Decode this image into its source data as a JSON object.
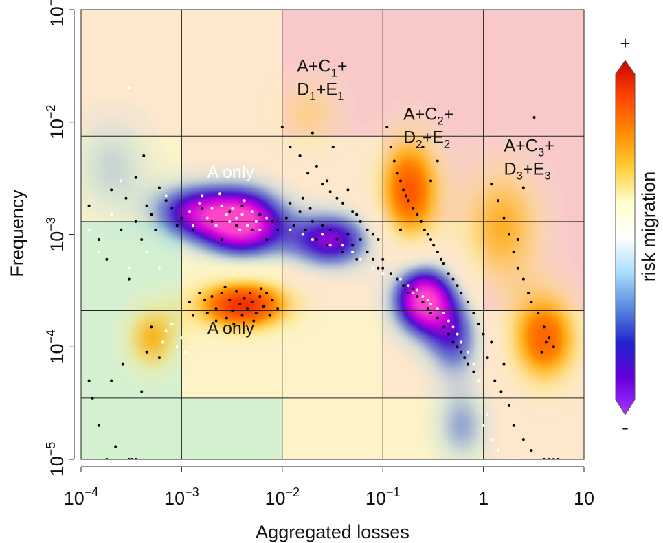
{
  "chart_data": {
    "type": "scatter",
    "background": "heatmap",
    "xlabel": "Aggregated losses",
    "ylabel": "Frequency",
    "x_scale": "log",
    "y_scale": "log",
    "xlim": [
      0.0001,
      10
    ],
    "ylim": [
      1e-05,
      0.1
    ],
    "x_ticks": [
      {
        "value": 0.0001,
        "base": "10",
        "exp": "−4"
      },
      {
        "value": 0.001,
        "base": "10",
        "exp": "−3"
      },
      {
        "value": 0.01,
        "base": "10",
        "exp": "−2"
      },
      {
        "value": 0.1,
        "base": "10",
        "exp": "−1"
      },
      {
        "value": 1,
        "base": "1",
        "exp": ""
      },
      {
        "value": 10,
        "base": "10",
        "exp": ""
      }
    ],
    "y_ticks": [
      {
        "value": 1e-05,
        "base": "10",
        "exp": "−5"
      },
      {
        "value": 0.0001,
        "base": "10",
        "exp": "−4"
      },
      {
        "value": 0.001,
        "base": "10",
        "exp": "−3"
      },
      {
        "value": 0.01,
        "base": "10",
        "exp": "−2"
      },
      {
        "value": 0.1,
        "base": "10",
        "exp": "−1"
      }
    ],
    "grid": true,
    "grid_x_bounds": [
      0.001,
      0.01,
      0.1,
      1
    ],
    "grid_y_bounds": [
      3.5e-05,
      0.00021,
      0.0013,
      0.0075
    ],
    "zones": [
      {
        "col": 0,
        "row": 4,
        "color": "#fde7cd"
      },
      {
        "col": 1,
        "row": 4,
        "color": "#fde7cd"
      },
      {
        "col": 2,
        "row": 4,
        "color": "#f9c9c9"
      },
      {
        "col": 3,
        "row": 4,
        "color": "#f9c9c9"
      },
      {
        "col": 4,
        "row": 4,
        "color": "#f9c9c9"
      },
      {
        "col": 0,
        "row": 3,
        "color": "#fdf3c8"
      },
      {
        "col": 1,
        "row": 3,
        "color": "#fde7cd"
      },
      {
        "col": 2,
        "row": 3,
        "color": "#fde7cd"
      },
      {
        "col": 3,
        "row": 3,
        "color": "#f9c9c9"
      },
      {
        "col": 4,
        "row": 3,
        "color": "#f9c9c9"
      },
      {
        "col": 0,
        "row": 2,
        "color": "#d5f0d0"
      },
      {
        "col": 1,
        "row": 2,
        "color": "#fdf3c8"
      },
      {
        "col": 2,
        "row": 2,
        "color": "#fde7cd"
      },
      {
        "col": 3,
        "row": 2,
        "color": "#fde7cd"
      },
      {
        "col": 4,
        "row": 2,
        "color": "#f9c9c9"
      },
      {
        "col": 0,
        "row": 1,
        "color": "#d5f0d0"
      },
      {
        "col": 1,
        "row": 1,
        "color": "#fdf3c8"
      },
      {
        "col": 2,
        "row": 1,
        "color": "#fdf3c8"
      },
      {
        "col": 3,
        "row": 1,
        "color": "#fde7cd"
      },
      {
        "col": 4,
        "row": 1,
        "color": "#fde7cd"
      },
      {
        "col": 0,
        "row": 0,
        "color": "#d5f0d0"
      },
      {
        "col": 1,
        "row": 0,
        "color": "#d5f0d0"
      },
      {
        "col": 2,
        "row": 0,
        "color": "#fdf3c8"
      },
      {
        "col": 3,
        "row": 0,
        "color": "#fdf3c8"
      },
      {
        "col": 4,
        "row": 0,
        "color": "#fde7cd"
      }
    ],
    "blobs": [
      {
        "x": 0.004,
        "y": 0.0013,
        "sx": 0.3,
        "sy": 0.22,
        "w": -1.0
      },
      {
        "x": 0.0012,
        "y": 0.0016,
        "sx": 0.28,
        "sy": 0.18,
        "w": -0.6
      },
      {
        "x": 0.25,
        "y": 0.00027,
        "sx": 0.22,
        "sy": 0.22,
        "w": -1.0
      },
      {
        "x": 0.03,
        "y": 0.0009,
        "sx": 0.3,
        "sy": 0.18,
        "w": -0.7
      },
      {
        "x": 0.5,
        "y": 0.00012,
        "sx": 0.2,
        "sy": 0.25,
        "w": -0.5
      },
      {
        "x": 0.004,
        "y": 0.00024,
        "sx": 0.35,
        "sy": 0.17,
        "w": 0.95
      },
      {
        "x": 0.0005,
        "y": 0.00012,
        "sx": 0.2,
        "sy": 0.22,
        "w": 0.5
      },
      {
        "x": 0.18,
        "y": 0.0025,
        "sx": 0.22,
        "sy": 0.35,
        "w": 0.8
      },
      {
        "x": 4.0,
        "y": 0.00012,
        "sx": 0.25,
        "sy": 0.3,
        "w": 0.75
      },
      {
        "x": 1.5,
        "y": 0.0012,
        "sx": 0.3,
        "sy": 0.4,
        "w": 0.5
      },
      {
        "x": 0.018,
        "y": 0.012,
        "sx": 0.25,
        "sy": 0.25,
        "w": 0.3
      },
      {
        "x": 0.0002,
        "y": 0.004,
        "sx": 0.3,
        "sy": 0.35,
        "w": -0.25
      },
      {
        "x": 0.6,
        "y": 2e-05,
        "sx": 0.2,
        "sy": 0.25,
        "w": -0.35
      }
    ],
    "points_black": [
      [
        0.00012,
        0.0018
      ],
      [
        0.00015,
        0.0009
      ],
      [
        0.0002,
        0.0025
      ],
      [
        0.00018,
        0.0006
      ],
      [
        0.00025,
        0.0011
      ],
      [
        0.0003,
        0.0004
      ],
      [
        0.00028,
        0.0021
      ],
      [
        0.00035,
        0.0013
      ],
      [
        0.0004,
        0.0009
      ],
      [
        0.00045,
        0.0018
      ],
      [
        0.0005,
        0.0015
      ],
      [
        0.00055,
        0.0011
      ],
      [
        0.0006,
        0.0026
      ],
      [
        0.0007,
        0.002
      ],
      [
        0.0008,
        0.0017
      ],
      [
        0.0009,
        0.0012
      ],
      [
        0.00042,
        0.005
      ],
      [
        0.00035,
        0.0032
      ],
      [
        0.00013,
        3.5e-05
      ],
      [
        0.00015,
        2e-05
      ],
      [
        0.00018,
        1e-05
      ],
      [
        0.00022,
        1.3e-05
      ],
      [
        0.0003,
        1e-05
      ],
      [
        0.00032,
        1e-05
      ],
      [
        0.00035,
        1e-05
      ],
      [
        0.0002,
        5e-05
      ],
      [
        0.00026,
        7e-05
      ],
      [
        0.0004,
        4e-05
      ],
      [
        0.00045,
        9e-05
      ],
      [
        0.0005,
        0.00015
      ],
      [
        0.0006,
        8e-05
      ],
      [
        0.00012,
        5e-05
      ],
      [
        0.0012,
        0.00025
      ],
      [
        0.0015,
        0.0003
      ],
      [
        0.0018,
        0.0002
      ],
      [
        0.002,
        0.00028
      ],
      [
        0.0022,
        0.00022
      ],
      [
        0.0025,
        0.0003
      ],
      [
        0.0028,
        0.00018
      ],
      [
        0.003,
        0.00026
      ],
      [
        0.0032,
        0.00021
      ],
      [
        0.0035,
        0.00031
      ],
      [
        0.0038,
        0.00024
      ],
      [
        0.004,
        0.00019
      ],
      [
        0.0042,
        0.00027
      ],
      [
        0.0045,
        0.00022
      ],
      [
        0.0048,
        0.0003
      ],
      [
        0.005,
        0.00025
      ],
      [
        0.0055,
        0.0002
      ],
      [
        0.006,
        0.00028
      ],
      [
        0.0065,
        0.00023
      ],
      [
        0.007,
        0.0003
      ],
      [
        0.0075,
        0.00019
      ],
      [
        0.008,
        0.00026
      ],
      [
        0.009,
        0.00022
      ],
      [
        0.0022,
        0.00017
      ],
      [
        0.0033,
        0.00016
      ],
      [
        0.0052,
        0.00017
      ],
      [
        0.0062,
        0.00033
      ],
      [
        0.0027,
        0.00034
      ],
      [
        0.0017,
        0.00026
      ],
      [
        0.0013,
        0.00019
      ],
      [
        0.001,
        0.0014
      ],
      [
        0.0013,
        0.0011
      ],
      [
        0.0016,
        0.0017
      ],
      [
        0.002,
        0.0013
      ],
      [
        0.0025,
        0.0009
      ],
      [
        0.003,
        0.0016
      ],
      [
        0.0035,
        0.0012
      ],
      [
        0.004,
        0.0018
      ],
      [
        0.005,
        0.0011
      ],
      [
        0.006,
        0.0015
      ],
      [
        0.007,
        0.0009
      ],
      [
        0.008,
        0.0013
      ],
      [
        0.009,
        0.0011
      ],
      [
        0.011,
        0.0014
      ],
      [
        0.013,
        0.0012
      ],
      [
        0.015,
        0.0016
      ],
      [
        0.017,
        0.0011
      ],
      [
        0.02,
        0.0013
      ],
      [
        0.022,
        0.0009
      ],
      [
        0.025,
        0.0012
      ],
      [
        0.028,
        0.0008
      ],
      [
        0.03,
        0.0011
      ],
      [
        0.035,
        0.0009
      ],
      [
        0.04,
        0.0007
      ],
      [
        0.045,
        0.001
      ],
      [
        0.05,
        0.0008
      ],
      [
        0.055,
        0.0006
      ],
      [
        0.06,
        0.0009
      ],
      [
        0.07,
        0.0007
      ],
      [
        0.08,
        0.0006
      ],
      [
        0.09,
        0.0005
      ],
      [
        0.1,
        0.0006
      ],
      [
        0.012,
        0.0019
      ],
      [
        0.016,
        0.0021
      ],
      [
        0.019,
        0.0017
      ],
      [
        0.01,
        0.009
      ],
      [
        0.012,
        0.006
      ],
      [
        0.015,
        0.005
      ],
      [
        0.018,
        0.0035
      ],
      [
        0.02,
        0.008
      ],
      [
        0.022,
        0.004
      ],
      [
        0.025,
        0.0028
      ],
      [
        0.028,
        0.003
      ],
      [
        0.03,
        0.0024
      ],
      [
        0.032,
        0.006
      ],
      [
        0.035,
        0.0021
      ],
      [
        0.04,
        0.0019
      ],
      [
        0.045,
        0.0025
      ],
      [
        0.05,
        0.0016
      ],
      [
        0.055,
        0.0015
      ],
      [
        0.06,
        0.0013
      ],
      [
        0.07,
        0.0011
      ],
      [
        0.08,
        0.001
      ],
      [
        0.09,
        0.0009
      ],
      [
        0.1,
        0.0005
      ],
      [
        0.12,
        0.00045
      ],
      [
        0.14,
        0.0004
      ],
      [
        0.16,
        0.00035
      ],
      [
        0.18,
        0.0003
      ],
      [
        0.2,
        0.00033
      ],
      [
        0.22,
        0.00028
      ],
      [
        0.25,
        0.00025
      ],
      [
        0.28,
        0.00022
      ],
      [
        0.3,
        0.0002
      ],
      [
        0.35,
        0.00018
      ],
      [
        0.4,
        0.00015
      ],
      [
        0.45,
        0.00013
      ],
      [
        0.5,
        0.00011
      ],
      [
        0.55,
        0.0001
      ],
      [
        0.6,
        9e-05
      ],
      [
        0.65,
        8e-05
      ],
      [
        0.7,
        7e-05
      ],
      [
        0.8,
        6e-05
      ],
      [
        0.11,
        0.009
      ],
      [
        0.12,
        0.006
      ],
      [
        0.13,
        0.0045
      ],
      [
        0.14,
        0.0035
      ],
      [
        0.15,
        0.003
      ],
      [
        0.16,
        0.0025
      ],
      [
        0.17,
        0.0022
      ],
      [
        0.18,
        0.002
      ],
      [
        0.2,
        0.0017
      ],
      [
        0.22,
        0.0015
      ],
      [
        0.24,
        0.0013
      ],
      [
        0.26,
        0.0011
      ],
      [
        0.28,
        0.001
      ],
      [
        0.3,
        0.0009
      ],
      [
        0.32,
        0.0008
      ],
      [
        0.35,
        0.0007
      ],
      [
        0.38,
        0.0006
      ],
      [
        0.4,
        0.00055
      ],
      [
        0.45,
        0.00045
      ],
      [
        0.5,
        0.0004
      ],
      [
        0.55,
        0.00035
      ],
      [
        0.6,
        0.0003
      ],
      [
        0.7,
        0.00025
      ],
      [
        0.8,
        0.0002
      ],
      [
        0.9,
        0.00016
      ],
      [
        1.0,
        0.00013
      ],
      [
        0.3,
        0.003
      ],
      [
        0.35,
        0.0045
      ],
      [
        0.25,
        0.006
      ],
      [
        0.15,
        0.0011
      ],
      [
        1.2,
        0.0028
      ],
      [
        1.4,
        0.002
      ],
      [
        1.6,
        0.0014
      ],
      [
        1.8,
        0.001
      ],
      [
        2.0,
        0.0007
      ],
      [
        2.2,
        0.0005
      ],
      [
        2.5,
        0.0004
      ],
      [
        2.8,
        0.0003
      ],
      [
        3.0,
        0.00025
      ],
      [
        3.5,
        0.0002
      ],
      [
        4.0,
        0.00015
      ],
      [
        4.5,
        0.00012
      ],
      [
        5.0,
        0.0001
      ],
      [
        3.2,
        0.011
      ],
      [
        2.5,
        0.0026
      ],
      [
        2.2,
        0.0009
      ],
      [
        3.8,
        9e-05
      ],
      [
        4.2,
        0.00011
      ],
      [
        1.1,
        8e-05
      ],
      [
        1.3,
        5e-05
      ],
      [
        1.5,
        4e-05
      ],
      [
        1.8,
        3e-05
      ],
      [
        2.0,
        2e-05
      ],
      [
        2.5,
        1.5e-05
      ],
      [
        3.0,
        1.2e-05
      ],
      [
        4.0,
        1e-05
      ],
      [
        4.5,
        1e-05
      ],
      [
        5.0,
        1e-05
      ],
      [
        5.5,
        1e-05
      ],
      [
        1.2,
        0.00011
      ],
      [
        1.6,
        7e-05
      ]
    ],
    "points_white": [
      [
        0.00012,
        0.0011
      ],
      [
        0.00015,
        0.0007
      ],
      [
        0.0002,
        0.0015
      ],
      [
        0.0003,
        0.0005
      ],
      [
        0.00045,
        0.0007
      ],
      [
        0.0006,
        0.0005
      ],
      [
        0.00025,
        0.003
      ],
      [
        0.0003,
        0.02
      ],
      [
        0.0007,
        0.0022
      ],
      [
        0.0012,
        0.0016
      ],
      [
        0.0015,
        0.0019
      ],
      [
        0.0018,
        0.0014
      ],
      [
        0.002,
        0.0017
      ],
      [
        0.0022,
        0.0012
      ],
      [
        0.0025,
        0.0018
      ],
      [
        0.0028,
        0.0015
      ],
      [
        0.003,
        0.0013
      ],
      [
        0.0032,
        0.0017
      ],
      [
        0.0035,
        0.0014
      ],
      [
        0.0038,
        0.0011
      ],
      [
        0.004,
        0.0015
      ],
      [
        0.0045,
        0.0012
      ],
      [
        0.005,
        0.0016
      ],
      [
        0.0055,
        0.0013
      ],
      [
        0.006,
        0.0011
      ],
      [
        0.007,
        0.0014
      ],
      [
        0.0016,
        0.0022
      ],
      [
        0.0024,
        0.0023
      ],
      [
        0.0042,
        0.002
      ],
      [
        0.0013,
        0.0012
      ],
      [
        0.0008,
        0.00016
      ],
      [
        0.001,
        0.00012
      ],
      [
        0.0011,
        9e-05
      ],
      [
        0.0009,
        0.0001
      ],
      [
        0.0007,
        0.00014
      ],
      [
        0.00065,
        0.00011
      ],
      [
        0.012,
        0.0011
      ],
      [
        0.016,
        0.001
      ],
      [
        0.02,
        0.0009
      ],
      [
        0.025,
        0.001
      ],
      [
        0.03,
        0.0008
      ],
      [
        0.04,
        0.0008
      ],
      [
        0.05,
        0.0007
      ],
      [
        0.06,
        0.0006
      ],
      [
        0.08,
        0.0005
      ],
      [
        0.1,
        0.00045
      ],
      [
        0.15,
        0.0004
      ],
      [
        0.18,
        0.00035
      ],
      [
        0.2,
        0.0003
      ],
      [
        0.22,
        0.00032
      ],
      [
        0.25,
        0.00028
      ],
      [
        0.28,
        0.00026
      ],
      [
        0.3,
        0.00024
      ],
      [
        0.35,
        0.00022
      ],
      [
        0.4,
        0.0002
      ],
      [
        0.45,
        0.00017
      ],
      [
        0.5,
        0.00015
      ],
      [
        0.55,
        0.00013
      ],
      [
        0.6,
        0.00011
      ],
      [
        0.7,
        9e-05
      ],
      [
        0.8,
        7e-05
      ],
      [
        0.9,
        5e-05
      ],
      [
        1.0,
        2e-05
      ],
      [
        1.2,
        1.5e-05
      ],
      [
        1.4,
        1.2e-05
      ],
      [
        1.6,
        1e-05
      ],
      [
        1.8,
        1e-05
      ],
      [
        2.0,
        1e-05
      ],
      [
        2.2,
        1e-05
      ],
      [
        1.1,
        2.5e-05
      ]
    ],
    "annotations": [
      {
        "lines": [
          [
            "A+C",
            "1",
            "+"
          ],
          [
            "D",
            "1",
            "+E",
            "1"
          ]
        ],
        "x": 0.014,
        "y": 0.028,
        "color": "#111111"
      },
      {
        "lines": [
          [
            "A+C",
            "2",
            "+"
          ],
          [
            "D",
            "2",
            "+E",
            "2"
          ]
        ],
        "x": 0.16,
        "y": 0.0105,
        "color": "#111111"
      },
      {
        "lines": [
          [
            "A+C",
            "3",
            "+"
          ],
          [
            "D",
            "3",
            "+E",
            "3"
          ]
        ],
        "x": 1.6,
        "y": 0.0055,
        "color": "#111111"
      },
      {
        "lines": [
          [
            "A only"
          ]
        ],
        "x": 0.0018,
        "y": 0.0032,
        "color": "#ffffff"
      },
      {
        "lines": [
          [
            "A only"
          ]
        ],
        "x": 0.0018,
        "y": 0.00013,
        "color": "#111111"
      }
    ],
    "colorbar": {
      "label": "risk migration",
      "top_label": "+",
      "bottom_label": "-",
      "stops": [
        "#cc0000",
        "#ff4400",
        "#ff8800",
        "#ffcc33",
        "#ffffcc",
        "#ffffff",
        "#aaddff",
        "#5588dd",
        "#2222cc",
        "#6600dd",
        "#aa33ff"
      ]
    },
    "diverging_scale": {
      "positive": [
        "#fffbd8",
        "#ffe066",
        "#ffaa00",
        "#ff6600",
        "#ee2200"
      ],
      "negative": [
        "#d6f2ee",
        "#8ec5e8",
        "#3355cc",
        "#4411cc",
        "#cc00dd",
        "#ff44cc"
      ]
    }
  }
}
